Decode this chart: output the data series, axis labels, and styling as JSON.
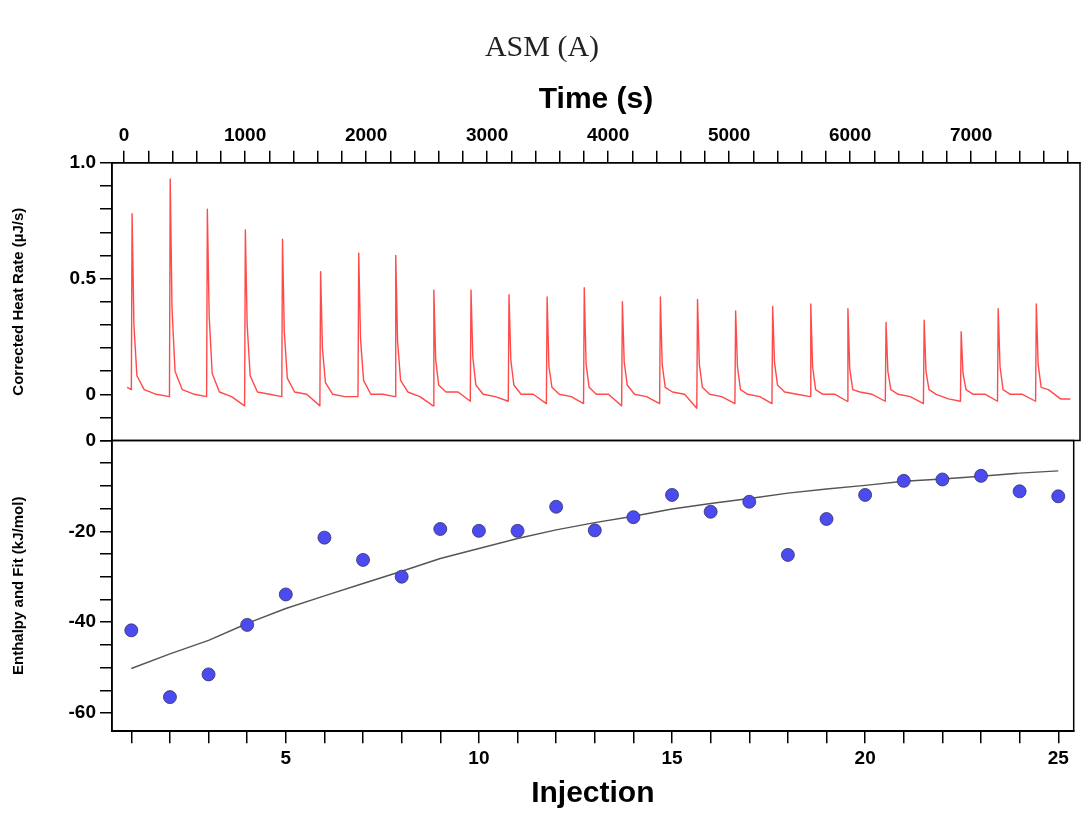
{
  "chart_data": [
    {
      "type": "line",
      "title": "ASM (A)",
      "xlabel": "Time (s)",
      "ylabel": "Corrected Heat Rate (µJ/s)",
      "xlim": [
        -100,
        7900
      ],
      "xticks": [
        0,
        {
          "value": 200,
          "label": null
        },
        {
          "value": 400,
          "label": null
        },
        {
          "value": 600,
          "label": null
        },
        {
          "value": 800,
          "label": null
        },
        1000,
        {
          "value": 1200,
          "label": null
        },
        {
          "value": 1400,
          "label": null
        },
        {
          "value": 1600,
          "label": null
        },
        {
          "value": 1800,
          "label": null
        },
        2000,
        {
          "value": 2200,
          "label": null
        },
        {
          "value": 2400,
          "label": null
        },
        {
          "value": 2600,
          "label": null
        },
        {
          "value": 2800,
          "label": null
        },
        3000,
        {
          "value": 3200,
          "label": null
        },
        {
          "value": 3400,
          "label": null
        },
        {
          "value": 3600,
          "label": null
        },
        {
          "value": 3800,
          "label": null
        },
        4000,
        {
          "value": 4200,
          "label": null
        },
        {
          "value": 4400,
          "label": null
        },
        {
          "value": 4600,
          "label": null
        },
        {
          "value": 4800,
          "label": null
        },
        5000,
        {
          "value": 5200,
          "label": null
        },
        {
          "value": 5400,
          "label": null
        },
        {
          "value": 5600,
          "label": null
        },
        {
          "value": 5800,
          "label": null
        },
        6000,
        {
          "value": 6200,
          "label": null
        },
        {
          "value": 6400,
          "label": null
        },
        {
          "value": 6600,
          "label": null
        },
        {
          "value": 6800,
          "label": null
        },
        7000,
        {
          "value": 7200,
          "label": null
        },
        {
          "value": 7400,
          "label": null
        },
        {
          "value": 7600,
          "label": null
        },
        {
          "value": 7800,
          "label": null
        }
      ],
      "ylim": [
        -0.2,
        1.0
      ],
      "yticks": [
        {
          "value": -0.2,
          "label": null
        },
        {
          "value": -0.1,
          "label": null
        },
        0,
        {
          "value": 0.1,
          "label": null
        },
        {
          "value": 0.2,
          "label": null
        },
        {
          "value": 0.3,
          "label": null
        },
        {
          "value": 0.4,
          "label": null
        },
        0.5,
        {
          "value": 0.6,
          "label": null
        },
        {
          "value": 0.7,
          "label": null
        },
        {
          "value": 0.8,
          "label": null
        },
        {
          "value": 0.9,
          "label": null
        },
        {
          "value": 1.0,
          "label": "1.0"
        }
      ],
      "grid": false,
      "marker": "none",
      "line_style": "solid",
      "series": [
        {
          "color": "#ff4a4a",
          "x": [
            25,
            60,
            66,
            81,
            106,
            166,
            266,
            375,
            381,
            396,
            421,
            481,
            581,
            682,
            688,
            703,
            728,
            788,
            888,
            996,
            1002,
            1017,
            1042,
            1102,
            1202,
            1303,
            1309,
            1324,
            1349,
            1409,
            1509,
            1618,
            1624,
            1639,
            1664,
            1724,
            1824,
            1933,
            1939,
            1954,
            1979,
            2039,
            2139,
            2239,
            2245,
            2260,
            2285,
            2345,
            2445,
            2554,
            2560,
            2575,
            2600,
            2660,
            2760,
            2861,
            2867,
            2882,
            2907,
            2967,
            3067,
            3175,
            3181,
            3196,
            3221,
            3281,
            3381,
            3490,
            3496,
            3511,
            3536,
            3596,
            3696,
            3797,
            3803,
            3818,
            3843,
            3903,
            4003,
            4112,
            4118,
            4133,
            4158,
            4218,
            4318,
            4426,
            4432,
            4447,
            4472,
            4532,
            4632,
            4733,
            4739,
            4754,
            4779,
            4839,
            4939,
            5048,
            5054,
            5069,
            5094,
            5154,
            5254,
            5354,
            5360,
            5375,
            5400,
            5460,
            5560,
            5669,
            5675,
            5690,
            5715,
            5775,
            5875,
            5976,
            5982,
            5997,
            6022,
            6082,
            6182,
            6291,
            6297,
            6312,
            6337,
            6397,
            6497,
            6606,
            6612,
            6627,
            6652,
            6712,
            6812,
            6912,
            6918,
            6933,
            6958,
            7018,
            7118,
            7218,
            7224,
            7239,
            7264,
            7324,
            7424,
            7533,
            7539,
            7554,
            7579,
            7639,
            7739,
            7820
          ],
          "values": [
            0.03,
            0.02,
            0.78,
            0.3,
            0.08,
            0.02,
            0.0,
            -0.01,
            0.93,
            0.37,
            0.1,
            0.02,
            0.0,
            -0.01,
            0.8,
            0.34,
            0.09,
            0.01,
            -0.01,
            -0.05,
            0.71,
            0.3,
            0.08,
            0.01,
            0.0,
            -0.01,
            0.67,
            0.27,
            0.07,
            0.01,
            0.0,
            -0.05,
            0.53,
            0.2,
            0.05,
            0.0,
            -0.01,
            -0.01,
            0.61,
            0.24,
            0.06,
            0.0,
            0.0,
            -0.01,
            0.6,
            0.23,
            0.06,
            0.01,
            -0.01,
            -0.05,
            0.45,
            0.15,
            0.04,
            0.01,
            0.01,
            -0.03,
            0.45,
            0.16,
            0.04,
            0.0,
            -0.01,
            -0.03,
            0.43,
            0.15,
            0.04,
            0.0,
            0.0,
            -0.04,
            0.42,
            0.12,
            0.03,
            0.0,
            -0.01,
            -0.04,
            0.46,
            0.13,
            0.03,
            0.0,
            0.0,
            -0.05,
            0.4,
            0.14,
            0.04,
            0.0,
            -0.01,
            -0.04,
            0.42,
            0.13,
            0.03,
            0.01,
            0.0,
            -0.06,
            0.41,
            0.13,
            0.03,
            0.0,
            -0.01,
            -0.04,
            0.36,
            0.12,
            0.02,
            0.0,
            -0.01,
            -0.04,
            0.38,
            0.14,
            0.04,
            0.01,
            0.0,
            -0.01,
            0.39,
            0.12,
            0.02,
            0.0,
            0.0,
            -0.03,
            0.37,
            0.11,
            0.02,
            0.01,
            0.0,
            -0.03,
            0.31,
            0.1,
            0.02,
            0.0,
            -0.01,
            -0.04,
            0.32,
            0.1,
            0.02,
            0.0,
            -0.02,
            -0.03,
            0.27,
            0.09,
            0.02,
            0.0,
            0.0,
            -0.03,
            0.37,
            0.12,
            0.02,
            0.0,
            0.0,
            -0.03,
            0.39,
            0.13,
            0.03,
            0.02,
            -0.02,
            -0.02
          ]
        }
      ]
    },
    {
      "type": "scatter",
      "xlabel": "Injection",
      "ylabel": "Enthalpy and Fit (kJ/mol)",
      "xlim": [
        0.5,
        25.4
      ],
      "xticks": [
        {
          "value": 1,
          "label": null
        },
        {
          "value": 2,
          "label": null
        },
        {
          "value": 3,
          "label": null
        },
        {
          "value": 4,
          "label": null
        },
        5,
        {
          "value": 6,
          "label": null
        },
        {
          "value": 7,
          "label": null
        },
        {
          "value": 8,
          "label": null
        },
        {
          "value": 9,
          "label": null
        },
        10,
        {
          "value": 11,
          "label": null
        },
        {
          "value": 12,
          "label": null
        },
        {
          "value": 13,
          "label": null
        },
        {
          "value": 14,
          "label": null
        },
        15,
        {
          "value": 16,
          "label": null
        },
        {
          "value": 17,
          "label": null
        },
        {
          "value": 18,
          "label": null
        },
        {
          "value": 19,
          "label": null
        },
        20,
        {
          "value": 21,
          "label": null
        },
        {
          "value": 22,
          "label": null
        },
        {
          "value": 23,
          "label": null
        },
        {
          "value": 24,
          "label": null
        },
        25
      ],
      "ylim": [
        -64,
        0
      ],
      "yticks": [
        0,
        {
          "value": -5,
          "label": null
        },
        {
          "value": -10,
          "label": null
        },
        {
          "value": -15,
          "label": null
        },
        -20,
        {
          "value": -25,
          "label": null
        },
        {
          "value": -30,
          "label": null
        },
        {
          "value": -35,
          "label": null
        },
        -40,
        {
          "value": -45,
          "label": null
        },
        {
          "value": -50,
          "label": null
        },
        {
          "value": -55,
          "label": null
        },
        -60
      ],
      "grid": false,
      "x": [
        1,
        2,
        3,
        4,
        5,
        6,
        7,
        8,
        9,
        10,
        11,
        12,
        13,
        14,
        15,
        16,
        17,
        18,
        19,
        20,
        21,
        22,
        23,
        24,
        25
      ],
      "series": [
        {
          "type": "scatter",
          "marker": "circle",
          "color": "#4b4bf0",
          "values": [
            -41.8,
            -56.5,
            -51.5,
            -40.6,
            -33.9,
            -21.4,
            -26.3,
            -30.0,
            -19.5,
            -19.9,
            -19.9,
            -14.6,
            -19.8,
            -16.9,
            -12.0,
            -15.7,
            -13.5,
            -25.2,
            -17.3,
            -12.0,
            -8.9,
            -8.6,
            -7.8,
            -11.2,
            -12.3
          ]
        },
        {
          "type": "line",
          "marker": "none",
          "line_style": "solid",
          "color": "#555555",
          "values": [
            -50.2,
            -47.0,
            -44.0,
            -40.3,
            -37.0,
            -34.2,
            -31.5,
            -28.8,
            -26.0,
            -23.8,
            -21.6,
            -19.7,
            -18.1,
            -16.7,
            -15.1,
            -13.9,
            -12.8,
            -11.6,
            -10.7,
            -9.9,
            -9.0,
            -8.5,
            -7.9,
            -7.2,
            -6.7
          ]
        }
      ]
    }
  ]
}
